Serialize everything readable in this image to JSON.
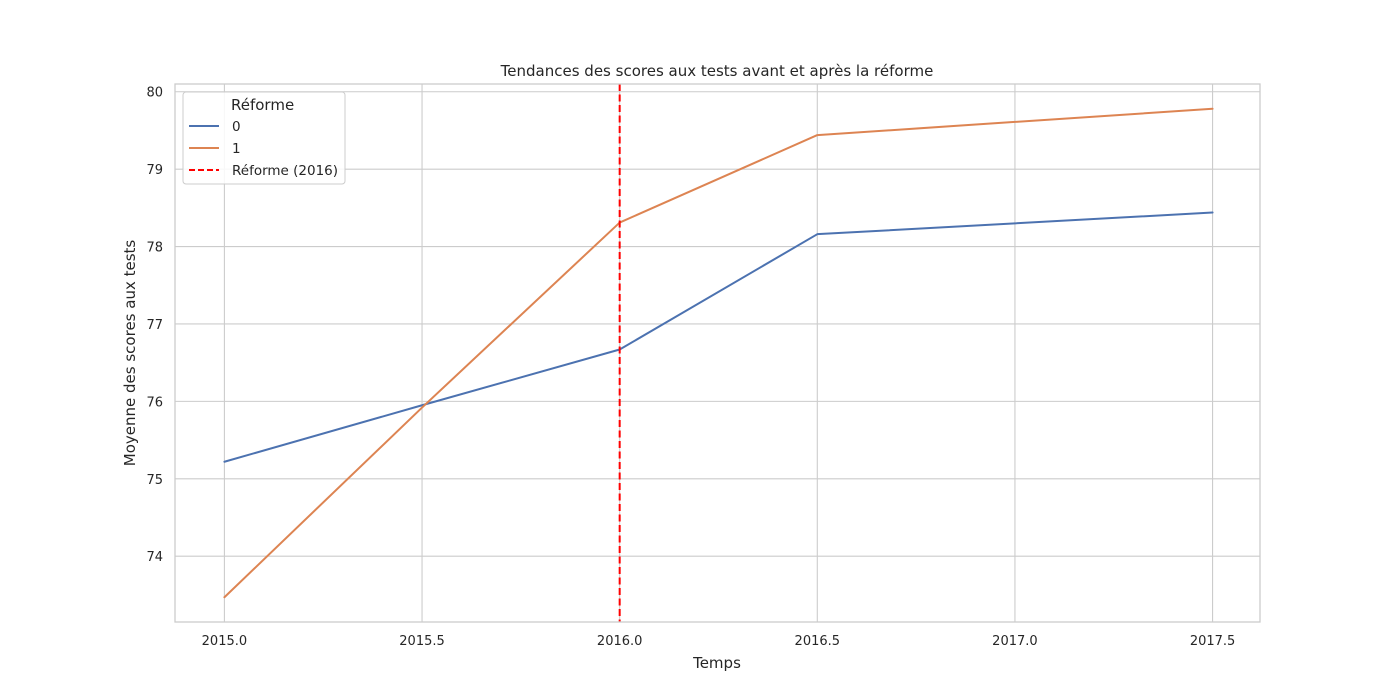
{
  "chart_data": {
    "type": "line",
    "title": "Tendances des scores aux tests avant et après la réforme",
    "xlabel": "Temps",
    "ylabel": "Moyenne des scores aux tests",
    "xlim": [
      2014.875,
      2017.62
    ],
    "ylim": [
      73.15,
      80.1
    ],
    "grid": true,
    "legend_placement": "top-left",
    "legend_title": "Réforme",
    "x_ticks": [
      2015.0,
      2015.5,
      2016.0,
      2016.5,
      2017.0,
      2017.5
    ],
    "x_tick_labels": [
      "2015.0",
      "2015.5",
      "2016.0",
      "2016.5",
      "2017.0",
      "2017.5"
    ],
    "y_ticks": [
      74,
      75,
      76,
      77,
      78,
      79,
      80
    ],
    "y_tick_labels": [
      "74",
      "75",
      "76",
      "77",
      "78",
      "79",
      "80"
    ],
    "x": [
      2015.0,
      2015.5,
      2016.0,
      2016.5,
      2017.0,
      2017.5
    ],
    "series": [
      {
        "name": "0",
        "color": "#4c72b0",
        "values": [
          75.22,
          75.95,
          76.67,
          78.16,
          78.3,
          78.44
        ]
      },
      {
        "name": "1",
        "color": "#dd8452",
        "values": [
          73.47,
          75.92,
          78.31,
          79.44,
          79.61,
          79.78
        ]
      }
    ],
    "vline": {
      "x": 2016.0,
      "name": "Réforme (2016)",
      "color": "#ff0000",
      "style": "dashed"
    }
  }
}
